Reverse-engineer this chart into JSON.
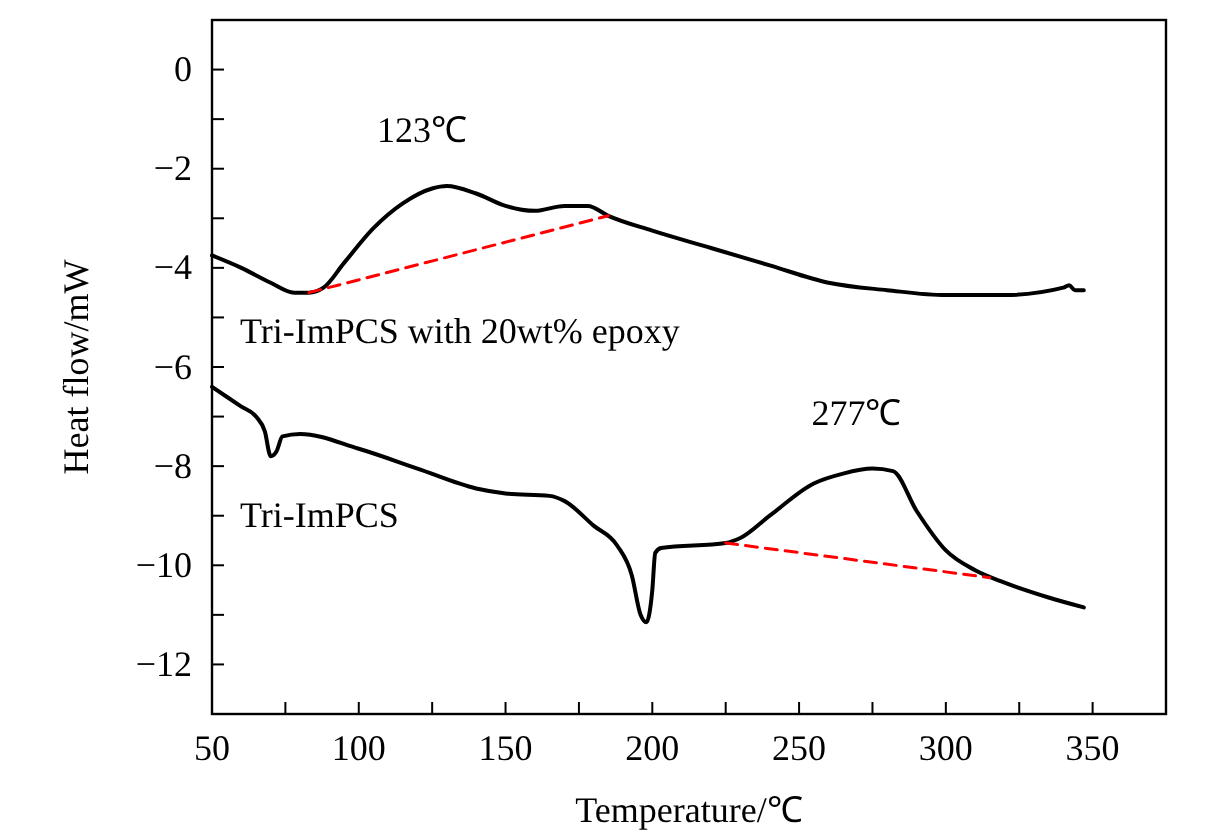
{
  "chart_data": {
    "type": "line",
    "xlabel": "Temperature/℃",
    "ylabel": "Heat flow/mW",
    "xlim": [
      50,
      375
    ],
    "ylim": [
      -13,
      1
    ],
    "xticks": [
      50,
      {
        "value": 75,
        "label": null
      },
      100,
      {
        "value": 125,
        "label": null
      },
      150,
      {
        "value": 175,
        "label": null
      },
      200,
      {
        "value": 225,
        "label": null
      },
      250,
      {
        "value": 275,
        "label": null
      },
      300,
      {
        "value": 325,
        "label": null
      },
      350
    ],
    "yticks": [
      -12,
      {
        "value": -11,
        "label": null
      },
      -10,
      {
        "value": -9,
        "label": null
      },
      -8,
      {
        "value": -7,
        "label": null
      },
      -6,
      {
        "value": -5,
        "label": null
      },
      -4,
      {
        "value": -3,
        "label": null
      },
      -2,
      {
        "value": -1,
        "label": null
      },
      0
    ],
    "grid": false,
    "marker": "none",
    "series": [
      {
        "name": "Tri-ImPCS with 20wt% epoxy",
        "color": "#000000",
        "line_style": "solid",
        "x": [
          50,
          60,
          70,
          78,
          83,
          88,
          95,
          105,
          115,
          125,
          130,
          140,
          150,
          160,
          170,
          178,
          185,
          200,
          220,
          240,
          260,
          280,
          300,
          320,
          340,
          342,
          344,
          347
        ],
        "values": [
          -3.75,
          -4.0,
          -4.3,
          -4.5,
          -4.5,
          -4.4,
          -3.9,
          -3.2,
          -2.7,
          -2.4,
          -2.35,
          -2.5,
          -2.75,
          -2.85,
          -2.75,
          -2.75,
          -2.95,
          -3.25,
          -3.6,
          -3.95,
          -4.3,
          -4.45,
          -4.55,
          -4.55,
          -4.4,
          -4.35,
          -4.45,
          -4.45
        ]
      },
      {
        "name": "Tri-ImPCS",
        "color": "#000000",
        "line_style": "solid",
        "x": [
          50,
          60,
          65,
          68,
          70,
          72,
          74,
          80,
          100,
          120,
          140,
          150,
          165,
          170,
          180,
          188,
          193,
          196,
          198,
          200,
          201,
          203,
          225,
          230,
          240,
          255,
          265,
          275,
          282,
          290,
          300,
          310,
          320,
          335,
          347
        ],
        "values": [
          -6.4,
          -6.8,
          -7.0,
          -7.3,
          -7.8,
          -7.7,
          -7.4,
          -7.35,
          -7.65,
          -8.05,
          -8.45,
          -8.55,
          -8.6,
          -8.7,
          -9.2,
          -9.6,
          -10.2,
          -11.0,
          -11.15,
          -10.5,
          -9.75,
          -9.65,
          -9.55,
          -9.45,
          -9.0,
          -8.35,
          -8.15,
          -8.05,
          -8.1,
          -8.9,
          -9.7,
          -10.1,
          -10.35,
          -10.65,
          -10.85
        ]
      },
      {
        "color": "#ff0000",
        "line_style": "dashed",
        "x": [
          83,
          185
        ],
        "values": [
          -4.5,
          -2.95
        ]
      },
      {
        "color": "#ff0000",
        "line_style": "dashed",
        "x": [
          225,
          315
        ],
        "values": [
          -9.55,
          -10.25
        ]
      }
    ],
    "annotations": [
      {
        "text": "123℃",
        "x": 127,
        "y": -2.35
      },
      {
        "text": "277℃",
        "x": 275,
        "y": -8.05
      }
    ]
  }
}
